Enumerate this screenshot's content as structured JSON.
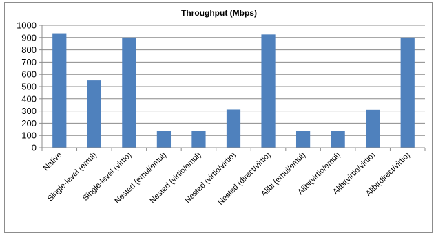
{
  "chart_data": {
    "type": "bar",
    "title": "Throughput (Mbps)",
    "xlabel": "",
    "ylabel": "",
    "categories": [
      "Native",
      "Single-level (emul)",
      "Single-level (virtio)",
      "Nested (emul/emul)",
      "Nested (virtio/emul)",
      "Nested (virtio/virtio)",
      "Nested (direct/virtio)",
      "Alibi (emul/emul)",
      "Alibi(virtio/emul)",
      "Alibi(virtio/virtio)",
      "Alibi(direct/virtio)"
    ],
    "values": [
      935,
      550,
      900,
      140,
      140,
      312,
      925,
      140,
      140,
      310,
      900
    ],
    "ylim": [
      0,
      1000
    ],
    "yticks": [
      0,
      100,
      200,
      300,
      400,
      500,
      600,
      700,
      800,
      900,
      1000
    ],
    "grid": true,
    "legend": "none",
    "bar_color": "#4f81bd",
    "grid_color": "#8c8c8c"
  }
}
